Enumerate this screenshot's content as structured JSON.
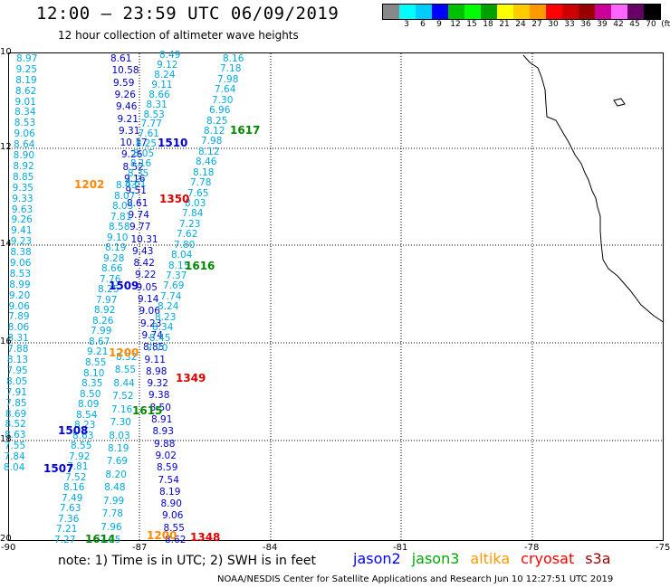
{
  "title": "12:00 – 23:59 UTC 06/09/2019",
  "subtitle": "12 hour collection of altimeter wave heights",
  "legend": {
    "colors": [
      "#888888",
      "#00ffff",
      "#00ccff",
      "#0000ff",
      "#00c000",
      "#00ff00",
      "#00a000",
      "#ffff00",
      "#ffcc00",
      "#ff9900",
      "#ff0000",
      "#cc0000",
      "#990000",
      "#cc0099",
      "#ff66ff",
      "#660066",
      "#000000"
    ],
    "labels": [
      "3",
      "6",
      "9",
      "12",
      "15",
      "18",
      "21",
      "24",
      "27",
      "30",
      "33",
      "36",
      "39",
      "42",
      "45",
      "70",
      "(ft)"
    ]
  },
  "axes": {
    "lat_labels": [
      "10",
      "12",
      "14",
      "16",
      "18",
      "20"
    ],
    "lon_labels": [
      "-90",
      "-87",
      "-84",
      "-81",
      "-78",
      "-75"
    ]
  },
  "passes": {
    "p1": {
      "color": "#00aadd",
      "values": [
        "8.97",
        "9.25",
        "8.19",
        "8.62",
        "9.01",
        "8.34",
        "8.53",
        "9.06",
        "8.64",
        "8.90",
        "8.92",
        "8.85",
        "9.35",
        "9.33",
        "9.63",
        "9.26",
        "9.41",
        "9.23",
        "8.38",
        "9.06",
        "8.53",
        "8.99",
        "9.20",
        "9.06",
        "7.89",
        "8.06",
        "8.31",
        "7.88",
        "8.13",
        "7.95",
        "8.05",
        "7.91",
        "7.85",
        "8.69",
        "8.52",
        "8.63",
        "7.55",
        "7.84",
        "8.04"
      ]
    },
    "p2": {
      "color": "#0000cc",
      "values": [
        "8.61",
        "10.58",
        "9.59",
        "9.26",
        "9.46",
        "9.21",
        "9.31",
        "10.17",
        "9.26",
        "8.52",
        "9.16",
        "9.51",
        "8.61",
        "9.74",
        "9.77",
        "10.31",
        "9.43",
        "8.42",
        "9.22",
        "9.05",
        "9.14",
        "9.06",
        "9.23",
        "9.74",
        "8.85",
        "9.11",
        "8.98",
        "9.32",
        "9.38",
        "8.50",
        "8.91",
        "8.93",
        "9.88",
        "9.02",
        "8.59",
        "7.54",
        "8.19",
        "8.90",
        "9.06",
        "8.55",
        "8.62"
      ]
    },
    "p3": {
      "color": "#00aadd",
      "values": [
        "8.49",
        "9.12",
        "8.24",
        "9.11",
        "8.66",
        "8.31",
        "8.53",
        "7.77",
        "7.61",
        "8.25",
        "8.05",
        "8.16",
        "8.35",
        "8.61"
      ]
    },
    "p4": {
      "color": "#00aadd",
      "values": [
        "8.16",
        "7.18",
        "7.98",
        "7.64",
        "7.30",
        "6.96",
        "8.25",
        "8.12",
        "7.98",
        "8.12",
        "8.46",
        "8.18",
        "7.78",
        "7.65",
        "8.03",
        "7.84",
        "7.23",
        "7.62",
        "7.80",
        "8.04",
        "8.15",
        "7.37",
        "7.69",
        "7.74",
        "8.24",
        "8.23",
        "8.34",
        "8.45",
        "7.70"
      ]
    },
    "p5": {
      "color": "#00aadd",
      "values": [
        "8.43",
        "8.07",
        "8.05",
        "7.81",
        "8.58",
        "9.10",
        "8.19",
        "9.28",
        "8.66",
        "7.76",
        "8.25",
        "7.97",
        "8.92",
        "8.26",
        "7.99",
        "8.67",
        "9.21",
        "8.55",
        "8.10",
        "8.35",
        "8.50",
        "8.09",
        "8.54",
        "8.23",
        "8.63",
        "8.55",
        "7.92",
        "7.81",
        "7.52",
        "8.16",
        "7.49",
        "7.63",
        "7.36",
        "7.21",
        "7.27"
      ]
    },
    "p6": {
      "color": "#00aadd",
      "values": [
        "8.32",
        "8.55",
        "8.44",
        "7.52",
        "7.16",
        "7.30",
        "8.03",
        "8.19",
        "7.69",
        "8.20",
        "8.48",
        "7.99",
        "7.78",
        "7.96",
        "7.25"
      ]
    }
  },
  "pass_times": [
    {
      "label": "1510",
      "color": "#0000cc"
    },
    {
      "label": "1617",
      "color": "#008800"
    },
    {
      "label": "1202",
      "color": "#ff8800"
    },
    {
      "label": "1350",
      "color": "#dd0000"
    },
    {
      "label": "1616",
      "color": "#008800"
    },
    {
      "label": "1509",
      "color": "#0000cc"
    },
    {
      "label": "1200",
      "color": "#ff8800"
    },
    {
      "label": "1349",
      "color": "#dd0000"
    },
    {
      "label": "1615",
      "color": "#008800"
    },
    {
      "label": "1508",
      "color": "#0000cc"
    },
    {
      "label": "1507",
      "color": "#0000cc"
    },
    {
      "label": "1614",
      "color": "#008800"
    },
    {
      "label": "1200",
      "color": "#ff8800"
    },
    {
      "label": "1348",
      "color": "#dd0000"
    }
  ],
  "footer": {
    "note": "note:  1) Time is in UTC;  2) SWH is in feet",
    "satellites": [
      {
        "name": "jason2",
        "color": "#0000ff"
      },
      {
        "name": "jason3",
        "color": "#00aa00"
      },
      {
        "name": "altika",
        "color": "#ff9900"
      },
      {
        "name": "cryosat",
        "color": "#ff0000"
      },
      {
        "name": "s3a",
        "color": "#990000"
      }
    ],
    "credit": "NOAA/NESDIS Center for Satellite Applications and Research    Jun 10 12:27:51 UTC 2019"
  }
}
